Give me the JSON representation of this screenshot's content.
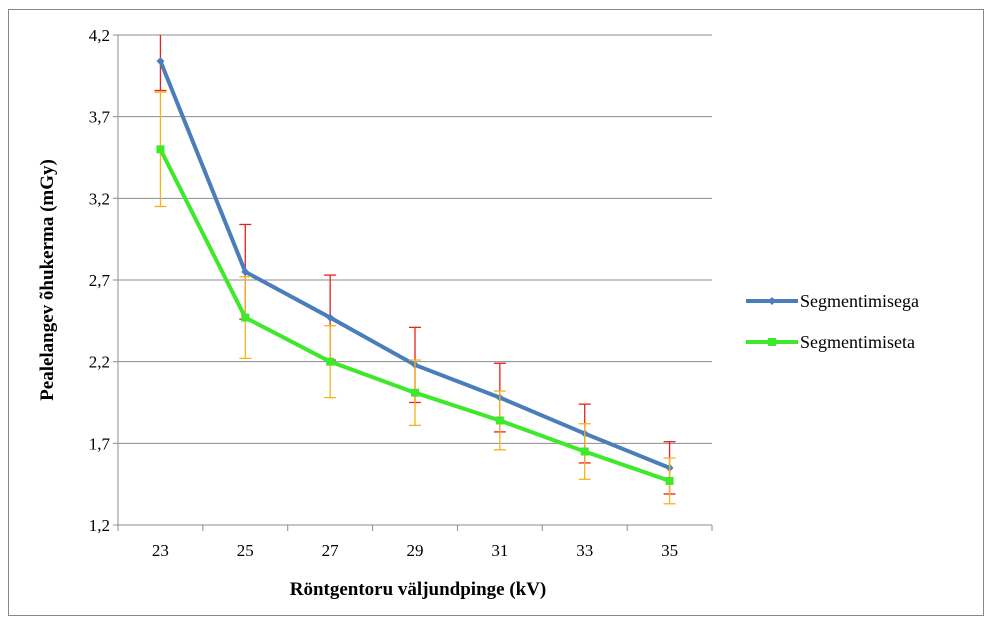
{
  "chart_data": {
    "type": "line",
    "title": "",
    "xlabel": "Röntgentoru väljundpinge (kV)",
    "ylabel": "Pealelangev õhukerma (mGy)",
    "categories": [
      "23",
      "25",
      "27",
      "29",
      "31",
      "33",
      "35"
    ],
    "y_ticks": [
      "1,2",
      "1,7",
      "2,2",
      "2,7",
      "3,2",
      "3,7",
      "4,2"
    ],
    "ylim": [
      1.2,
      4.2
    ],
    "grid": true,
    "legend_position": "right",
    "series": [
      {
        "name": "Segmentimisega",
        "color": "#4a7ebb",
        "error_color": "#e8201e",
        "marker": "diamond",
        "values": [
          4.04,
          2.75,
          2.47,
          2.18,
          1.98,
          1.76,
          1.55
        ],
        "error": [
          0.18,
          0.29,
          0.26,
          0.23,
          0.21,
          0.18,
          0.16
        ]
      },
      {
        "name": "Segmentimiseta",
        "color": "#3ee82a",
        "error_color": "#f5b31b",
        "marker": "square",
        "values": [
          3.5,
          2.47,
          2.2,
          2.01,
          1.84,
          1.65,
          1.47
        ],
        "error": [
          0.35,
          0.25,
          0.22,
          0.2,
          0.18,
          0.17,
          0.14
        ]
      }
    ]
  }
}
